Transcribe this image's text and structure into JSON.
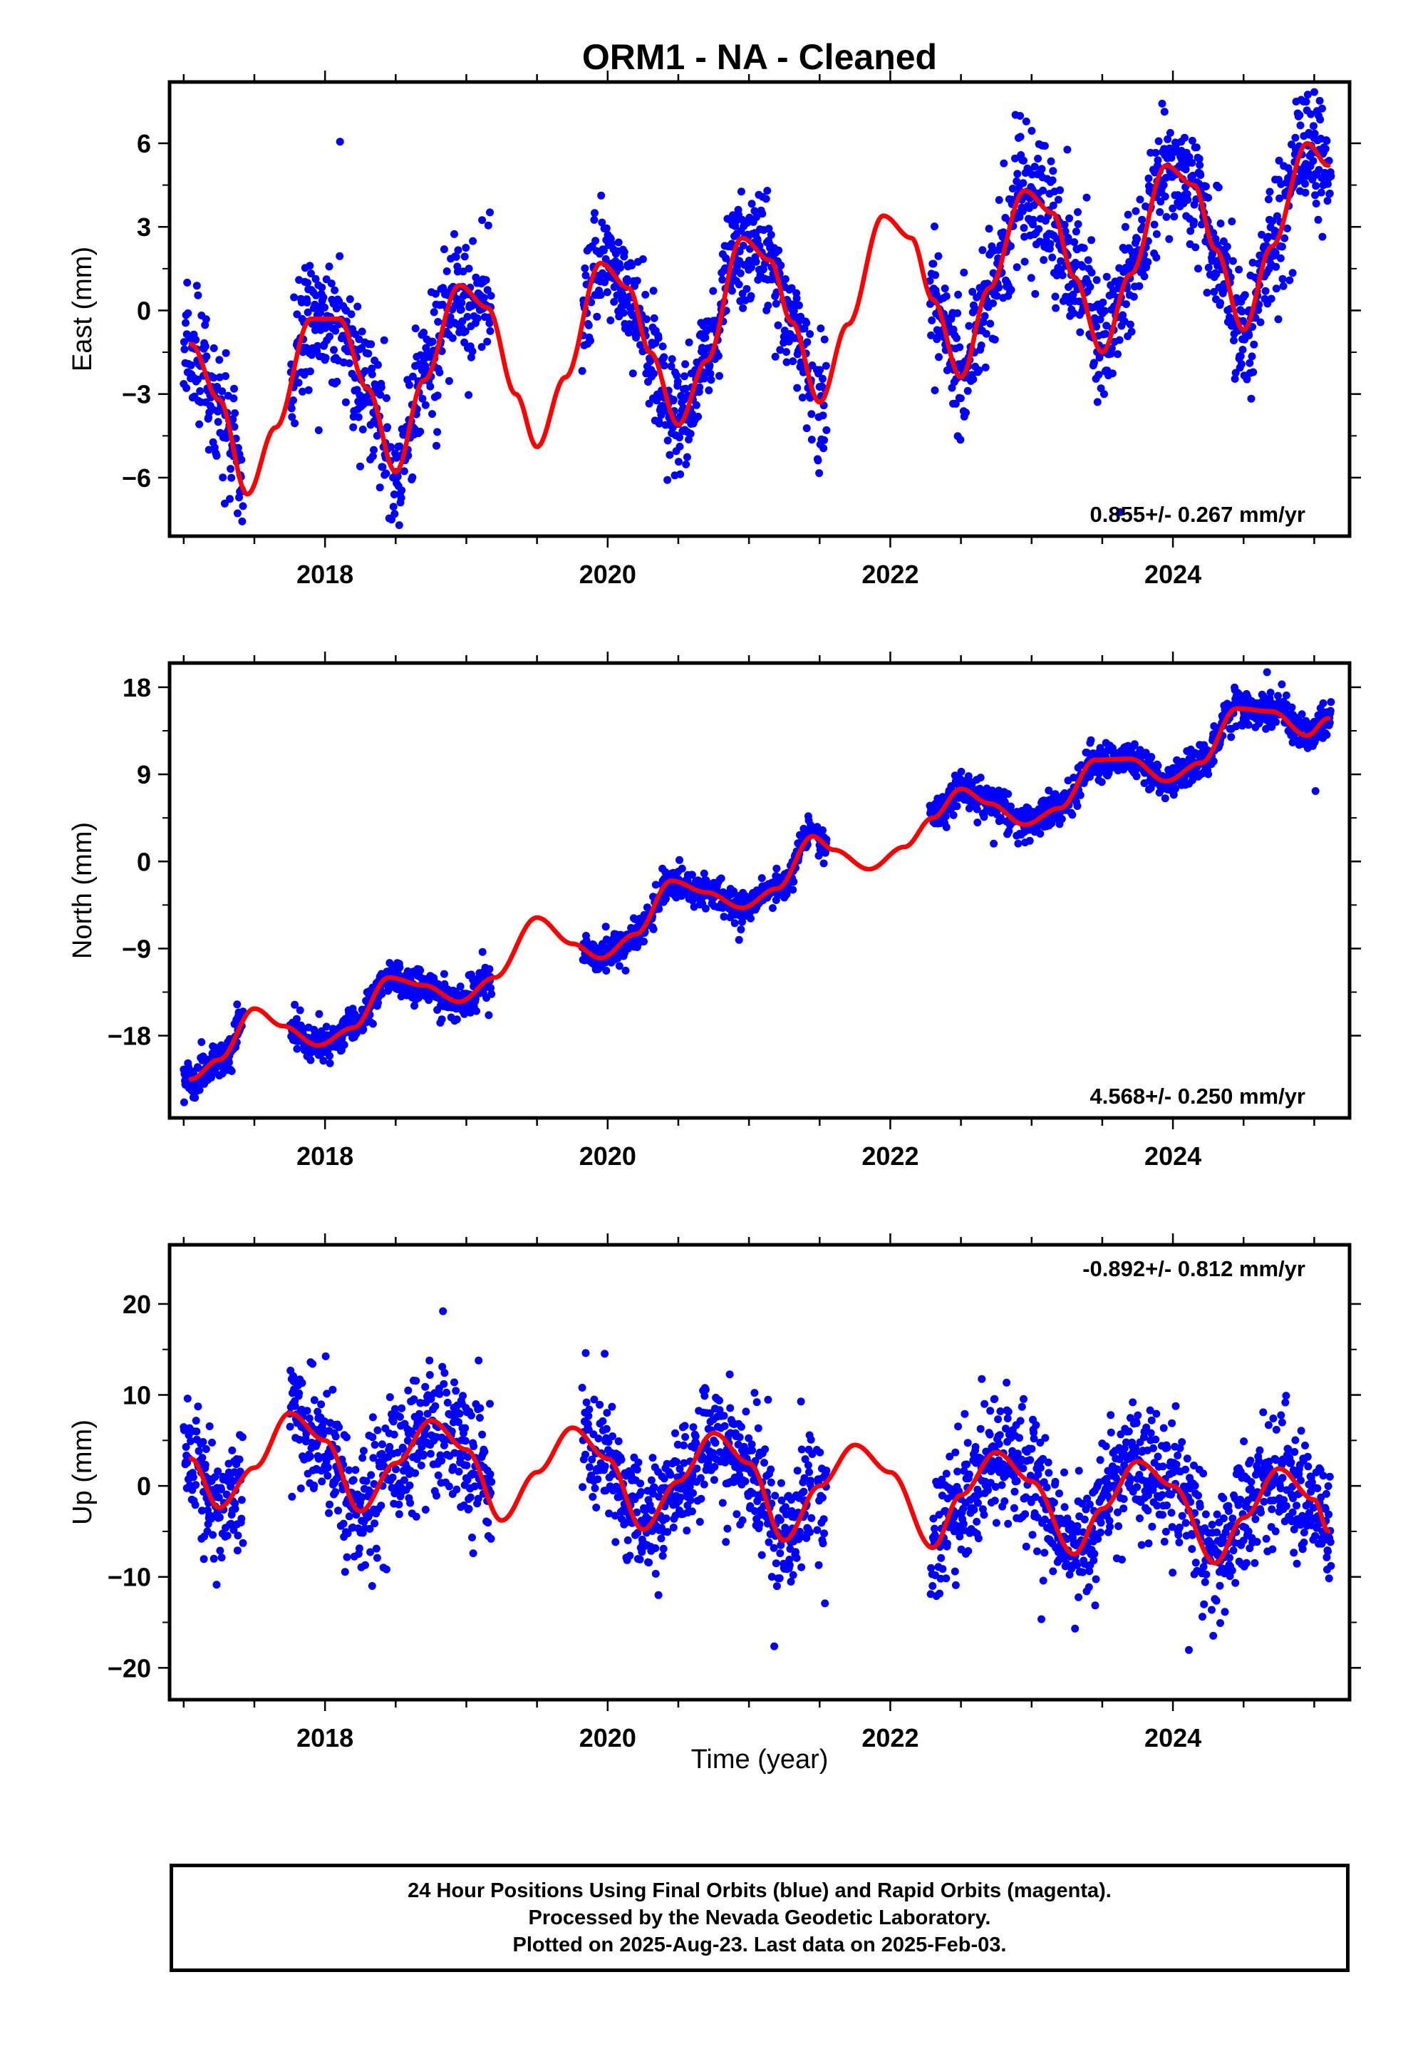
{
  "title": "ORM1  - NA - Cleaned",
  "xlabel": "Time (year)",
  "colors": {
    "points": "#0000ff",
    "fit": "#ff0000",
    "frame": "#000000"
  },
  "footer": {
    "line1": "24 Hour Positions Using Final Orbits (blue) and Rapid Orbits (magenta).",
    "line2": "Processed by the Nevada Geodetic Laboratory.",
    "line3": "Plotted on 2025-Aug-23. Last data on 2025-Feb-03."
  },
  "chart_data": [
    {
      "type": "scatter",
      "ylabel": "East (mm)",
      "xlim": [
        2016.9,
        2025.25
      ],
      "ylim": [
        -8.1,
        8.2
      ],
      "yticks": [
        -6,
        -3,
        0,
        3,
        6
      ],
      "ytick_labels": [
        "−6",
        "−3",
        "0",
        "3",
        "6"
      ],
      "xticks": [
        2018,
        2020,
        2022,
        2024
      ],
      "xtick_labels": [
        "2018",
        "2020",
        "2022",
        "2024"
      ],
      "rate_label": "0.855+/- 0.267 mm/yr",
      "rate_position": "bottom-right",
      "fit_curve": {
        "name": "",
        "x": [
          2017.05,
          2017.25,
          2017.45,
          2017.65,
          2017.9,
          2018.1,
          2018.3,
          2018.5,
          2018.7,
          2018.95,
          2019.15,
          2019.35,
          2019.5,
          2019.7,
          2019.95,
          2020.15,
          2020.3,
          2020.5,
          2020.7,
          2020.95,
          2021.15,
          2021.3,
          2021.5,
          2021.7,
          2021.95,
          2022.15,
          2022.3,
          2022.5,
          2022.7,
          2022.95,
          2023.15,
          2023.3,
          2023.5,
          2023.7,
          2023.95,
          2024.15,
          2024.3,
          2024.5,
          2024.7,
          2024.95,
          2025.1
        ],
        "y": [
          -1.2,
          -3.2,
          -6.6,
          -4.2,
          -0.3,
          -0.3,
          -2.8,
          -5.8,
          -2.5,
          0.9,
          0.1,
          -3.0,
          -4.9,
          -2.4,
          1.7,
          0.8,
          -1.5,
          -4.1,
          -1.8,
          2.6,
          1.8,
          -0.4,
          -3.3,
          -0.5,
          3.4,
          2.6,
          0.4,
          -2.4,
          0.8,
          4.3,
          3.5,
          1.2,
          -1.5,
          1.3,
          5.2,
          4.5,
          2.2,
          -0.7,
          2.3,
          6.0,
          5.2
        ]
      },
      "point_segments": [
        {
          "x_range": [
            2017.0,
            2017.42
          ],
          "sd": 1.1
        },
        {
          "x_range": [
            2017.75,
            2019.18
          ],
          "sd": 1.1
        },
        {
          "x_range": [
            2019.82,
            2021.45
          ],
          "sd": 1.0
        },
        {
          "x_range": [
            2021.48,
            2021.55
          ],
          "sd": 1.2
        },
        {
          "x_range": [
            2022.28,
            2025.12
          ],
          "sd": 1.1
        }
      ]
    },
    {
      "type": "scatter",
      "ylabel": "North (mm)",
      "xlim": [
        2016.9,
        2025.25
      ],
      "ylim": [
        -26.5,
        20.5
      ],
      "yticks": [
        -18,
        -9,
        0,
        9,
        18
      ],
      "ytick_labels": [
        "−18",
        "−9",
        "0",
        "9",
        "18"
      ],
      "xticks": [
        2018,
        2020,
        2022,
        2024
      ],
      "xtick_labels": [
        "2018",
        "2020",
        "2022",
        "2024"
      ],
      "rate_label": "4.568+/- 0.250 mm/yr",
      "rate_position": "bottom-right",
      "fit_curve": {
        "name": "",
        "x": [
          2017.05,
          2017.25,
          2017.5,
          2017.7,
          2017.95,
          2018.2,
          2018.45,
          2018.7,
          2018.95,
          2019.2,
          2019.5,
          2019.75,
          2019.95,
          2020.2,
          2020.45,
          2020.7,
          2020.95,
          2021.2,
          2021.45,
          2021.6,
          2021.85,
          2022.1,
          2022.3,
          2022.5,
          2022.7,
          2022.95,
          2023.2,
          2023.45,
          2023.7,
          2023.95,
          2024.2,
          2024.45,
          2024.7,
          2024.95,
          2025.1
        ],
        "y": [
          -22.5,
          -20.5,
          -15.2,
          -17.0,
          -19.0,
          -17.2,
          -12.0,
          -12.8,
          -14.5,
          -12.0,
          -5.8,
          -8.5,
          -10.0,
          -7.5,
          -2.0,
          -3.2,
          -4.8,
          -2.8,
          2.6,
          1.2,
          -0.8,
          1.5,
          4.5,
          7.5,
          6.0,
          3.8,
          5.5,
          10.5,
          10.6,
          8.3,
          10.2,
          15.8,
          15.5,
          13.0,
          14.8
        ]
      },
      "point_segments": [
        {
          "x_range": [
            2017.0,
            2017.42
          ],
          "sd": 0.9
        },
        {
          "x_range": [
            2017.75,
            2019.18
          ],
          "sd": 0.9
        },
        {
          "x_range": [
            2019.82,
            2021.45
          ],
          "sd": 0.8
        },
        {
          "x_range": [
            2021.48,
            2021.55
          ],
          "sd": 0.8
        },
        {
          "x_range": [
            2022.28,
            2025.12
          ],
          "sd": 0.9
        }
      ]
    },
    {
      "type": "scatter",
      "ylabel": "Up (mm)",
      "xlim": [
        2016.9,
        2025.25
      ],
      "ylim": [
        -23.5,
        26.5
      ],
      "yticks": [
        -20,
        -10,
        0,
        10,
        20
      ],
      "ytick_labels": [
        "−20",
        "−10",
        "0",
        "10",
        "20"
      ],
      "xticks": [
        2018,
        2020,
        2022,
        2024
      ],
      "xtick_labels": [
        "2018",
        "2020",
        "2022",
        "2024"
      ],
      "rate_label": "-0.892+/- 0.812 mm/yr",
      "rate_position": "top-right",
      "fit_curve": {
        "name": "",
        "x": [
          2017.05,
          2017.25,
          2017.5,
          2017.75,
          2018.0,
          2018.25,
          2018.5,
          2018.75,
          2019.0,
          2019.25,
          2019.5,
          2019.75,
          2020.0,
          2020.25,
          2020.5,
          2020.75,
          2021.0,
          2021.25,
          2021.5,
          2021.75,
          2022.0,
          2022.3,
          2022.5,
          2022.75,
          2023.0,
          2023.3,
          2023.5,
          2023.75,
          2024.0,
          2024.3,
          2024.5,
          2024.75,
          2025.0,
          2025.1
        ],
        "y": [
          3.0,
          -2.4,
          2.0,
          8.0,
          5.0,
          -2.8,
          2.5,
          7.2,
          4.0,
          -3.8,
          1.5,
          6.4,
          3.0,
          -4.8,
          0.5,
          5.8,
          2.5,
          -6.0,
          0.0,
          4.5,
          1.5,
          -6.8,
          -1.0,
          3.7,
          0.5,
          -7.5,
          -2.5,
          2.7,
          0.0,
          -8.5,
          -3.5,
          1.9,
          -1.5,
          -5.0
        ]
      },
      "point_segments": [
        {
          "x_range": [
            2017.0,
            2017.42
          ],
          "sd": 3.6
        },
        {
          "x_range": [
            2017.75,
            2019.18
          ],
          "sd": 3.6
        },
        {
          "x_range": [
            2019.82,
            2021.45
          ],
          "sd": 3.2
        },
        {
          "x_range": [
            2021.48,
            2021.55
          ],
          "sd": 3.2
        },
        {
          "x_range": [
            2022.28,
            2025.12
          ],
          "sd": 3.4
        }
      ]
    }
  ]
}
